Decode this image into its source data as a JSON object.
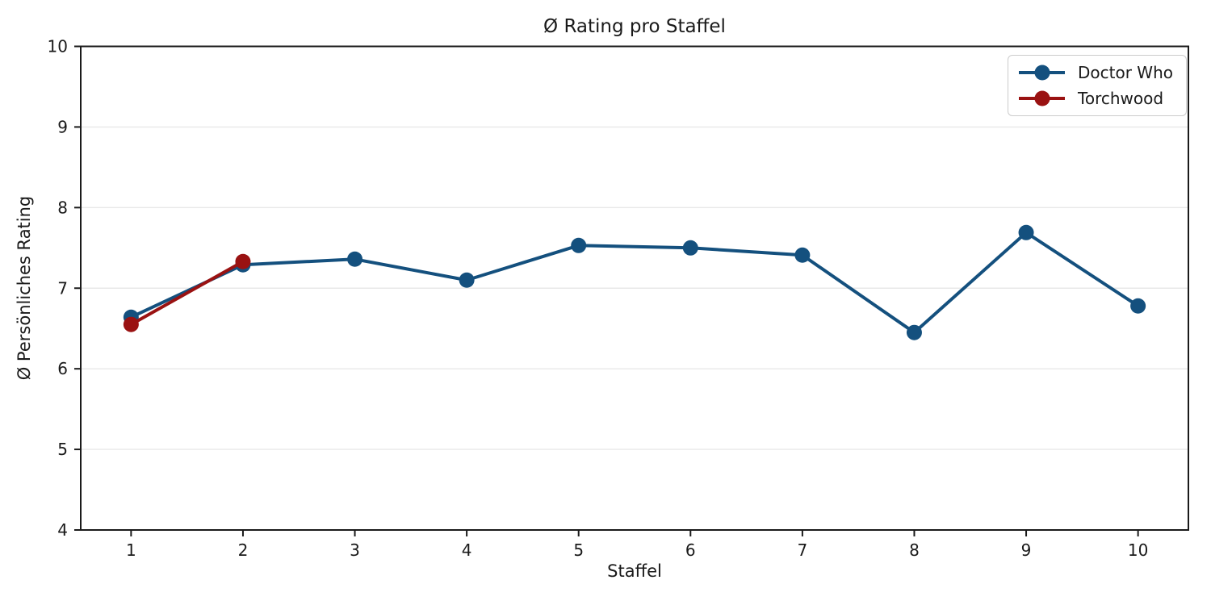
{
  "figure": {
    "background_color": "#ffffff",
    "axis_color": "#1a1a1a",
    "grid_color": "#e8e8e8",
    "legend_border_color": "#cccccc"
  },
  "chart_data": {
    "type": "line",
    "title": "Ø Rating pro Staffel",
    "xlabel": "Staffel",
    "ylabel": "Ø Persönliches Rating",
    "x_ticks": [
      1,
      2,
      3,
      4,
      5,
      6,
      7,
      8,
      9,
      10
    ],
    "y_ticks": [
      4,
      5,
      6,
      7,
      8,
      9,
      10
    ],
    "xlim": [
      0.55,
      10.45
    ],
    "ylim": [
      4,
      10
    ],
    "grid": "horizontal",
    "legend_position": "upper right",
    "series": [
      {
        "name": "Doctor Who",
        "color": "#14507E",
        "x": [
          1,
          2,
          3,
          4,
          5,
          6,
          7,
          8,
          9,
          10
        ],
        "values": [
          6.64,
          7.29,
          7.36,
          7.1,
          7.53,
          7.5,
          7.41,
          6.45,
          7.69,
          6.78
        ]
      },
      {
        "name": "Torchwood",
        "color": "#9A1212",
        "x": [
          1,
          2
        ],
        "values": [
          6.55,
          7.33
        ]
      }
    ]
  }
}
